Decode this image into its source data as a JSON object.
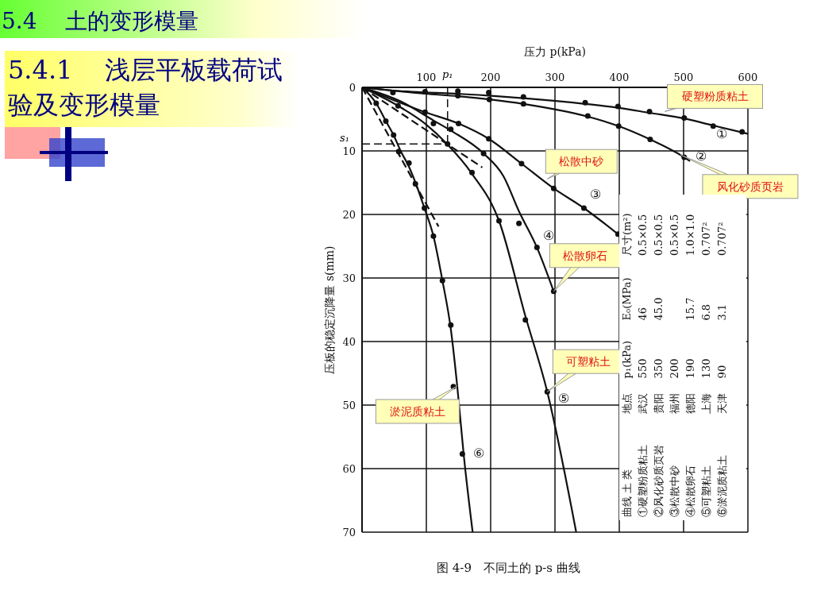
{
  "chart_data": {
    "type": "line",
    "title": "5.4    土的变形模量",
    "subtitle": "5.4.1    浅层平板载荷试验及变形模量",
    "xlabel": "压力 p(kPa)",
    "ylabel": "压板的稳定沉降量 s(mm)",
    "xlim": [
      0,
      600
    ],
    "xticks": [
      100,
      200,
      300,
      400,
      500,
      600
    ],
    "ylim": [
      70,
      0
    ],
    "yticks": [
      0,
      10,
      20,
      30,
      40,
      50,
      60,
      70
    ],
    "grid": true,
    "series": [
      {
        "name": "①",
        "color": "#111111",
        "x": [
          0,
          48,
          98,
          149,
          197,
          251,
          347,
          398,
          447,
          501,
          546,
          600
        ],
        "values": [
          0,
          0.5,
          0.8,
          1.0,
          1.3,
          1.7,
          2.6,
          3.2,
          4.0,
          4.9,
          6.0,
          7.3
        ]
      },
      {
        "name": "②",
        "color": "#111111",
        "x": [
          0,
          98,
          149,
          198,
          251,
          351,
          399,
          448,
          501,
          510
        ],
        "values": [
          0,
          1.0,
          1.4,
          1.9,
          2.6,
          4.6,
          6.1,
          8.2,
          11.0,
          11.6
        ]
      },
      {
        "name": "③",
        "color": "#111111",
        "x": [
          0,
          98,
          150,
          197,
          248,
          298,
          345,
          398
        ],
        "values": [
          0,
          3.9,
          5.7,
          8.1,
          12.0,
          15.9,
          19.0,
          23.1
        ]
      },
      {
        "name": "④",
        "color": "#111111",
        "x": [
          0,
          60,
          111,
          138,
          189,
          220,
          244,
          272,
          298
        ],
        "values": [
          0,
          2.2,
          5.2,
          6.8,
          10.4,
          14.0,
          19.5,
          25.2,
          32.1
        ]
      },
      {
        "name": "⑤",
        "color": "#111111",
        "x": [
          0,
          56,
          98,
          133,
          171,
          213,
          254,
          288,
          333
        ],
        "values": [
          0,
          2.9,
          5.7,
          9.0,
          13.6,
          21.0,
          36.0,
          47.9,
          70
        ]
      },
      {
        "name": "⑥",
        "color": "#111111",
        "x": [
          0,
          22,
          37,
          49,
          60,
          73,
          85,
          97,
          111,
          125,
          138,
          148,
          158,
          172
        ],
        "values": [
          0,
          2.5,
          5.3,
          7.5,
          10,
          12.5,
          15.5,
          19,
          23.4,
          30.4,
          38,
          47,
          57.7,
          70
        ]
      },
      {
        "type": "line",
        "line_style": "dashed",
        "color": "#111111",
        "x": [
          0,
          187
        ],
        "values": [
          0,
          12.6
        ]
      },
      {
        "type": "line",
        "line_style": "dashed",
        "color": "#111111",
        "x": [
          0,
          119
        ],
        "values": [
          0,
          21.9
        ]
      },
      {
        "type": "scatter",
        "color": "#111111",
        "x": [
          48,
          98,
          149,
          197,
          251,
          347,
          398,
          447,
          501,
          546,
          591,
          149,
          198,
          251,
          351,
          399,
          448,
          501,
          98,
          150,
          197,
          248,
          298,
          345,
          398,
          111,
          138,
          189,
          244,
          272,
          298,
          56,
          133,
          171,
          213,
          254,
          288,
          22,
          37,
          49,
          57,
          73,
          83,
          97,
          111,
          125,
          138,
          142,
          156
        ],
        "values": [
          0.8,
          0.7,
          0.6,
          0.8,
          1.5,
          2.4,
          3.0,
          3.8,
          4.8,
          6.1,
          7.0,
          1.3,
          1.9,
          2.6,
          4.5,
          6.1,
          8.2,
          11.0,
          3.9,
          5.7,
          8.1,
          12.0,
          15.9,
          19.0,
          23.1,
          5.7,
          6.6,
          10.4,
          21.4,
          25.2,
          32.1,
          2.9,
          8.9,
          13.4,
          21.0,
          36.6,
          47.9,
          2.5,
          5.3,
          7.5,
          10.1,
          11.9,
          15.2,
          19.0,
          23.4,
          30.4,
          37.4,
          47.1,
          57.7
        ]
      }
    ],
    "ref_lines": [
      {
        "axis": "x",
        "value": 133,
        "label": "p₁",
        "line_style": "dashed"
      },
      {
        "axis": "y",
        "value": 8.9,
        "label": "s₁",
        "line_style": "dashed"
      }
    ],
    "annotations": [
      {
        "text": "硬塑粉质粘土",
        "x": 471,
        "y": 3.8
      },
      {
        "text": "风化砂质页岩",
        "x": 495,
        "y": 10.6
      },
      {
        "text": "松散中砂",
        "x": 288,
        "y": 14.4
      },
      {
        "text": "松散卵石",
        "x": 298,
        "y": 32.1
      },
      {
        "text": "可塑粘土",
        "x": 288,
        "y": 47.9
      },
      {
        "text": "淤泥质粘土",
        "x": 148,
        "y": 47
      },
      "曲线 土 类  地点  p₁(kPa)  E₀(MPa)  尺寸(m²)",
      "①硬塑粉质粘土  武汉  550  46  0.5×0.5",
      "②风化砂质页岩  贵阳  350  45.0  0.5×0.5",
      "③松散中砂  福州  200    0.5×0.5",
      "④松散卵石  德阳  190  15.7  1.0×1.0",
      "⑤可塑粘土  上海  130  6.8  0.707²",
      "⑥淤泥质粘土  天津  90  3.1  0.707²",
      "图 4-9　不同土的 p-s 曲线"
    ]
  }
}
